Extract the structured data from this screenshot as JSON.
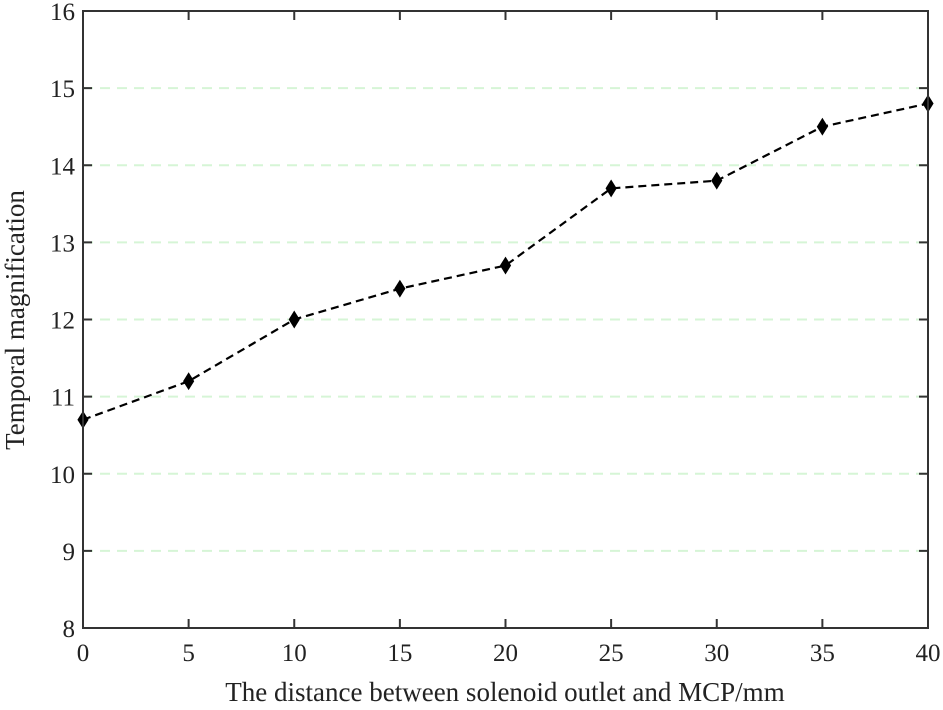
{
  "chart_data": {
    "type": "line",
    "title": "",
    "xlabel": "The distance between solenoid outlet and MCP/mm",
    "ylabel": "Temporal magnification",
    "xlim": [
      0,
      40
    ],
    "ylim": [
      8,
      16
    ],
    "x_ticks": [
      0,
      5,
      10,
      15,
      20,
      25,
      30,
      35,
      40
    ],
    "y_ticks": [
      8,
      9,
      10,
      11,
      12,
      13,
      14,
      15,
      16
    ],
    "x_tick_labels": [
      "0",
      "5",
      "10",
      "15",
      "20",
      "25",
      "30",
      "35",
      "40"
    ],
    "y_tick_labels": [
      "8",
      "9",
      "10",
      "11",
      "12",
      "13",
      "14",
      "15",
      "16"
    ],
    "grid": {
      "y": true,
      "x": false,
      "style": "dashed",
      "color": "#d6f5d6"
    },
    "legend": "none",
    "series": [
      {
        "name": "Temporal magnification",
        "line_style": "dashed",
        "marker": "diamond",
        "color": "#000000",
        "x": [
          0,
          5,
          10,
          15,
          20,
          25,
          30,
          35,
          40
        ],
        "y": [
          10.7,
          11.2,
          12.0,
          12.4,
          12.7,
          13.7,
          13.8,
          14.5,
          14.8
        ]
      }
    ]
  }
}
